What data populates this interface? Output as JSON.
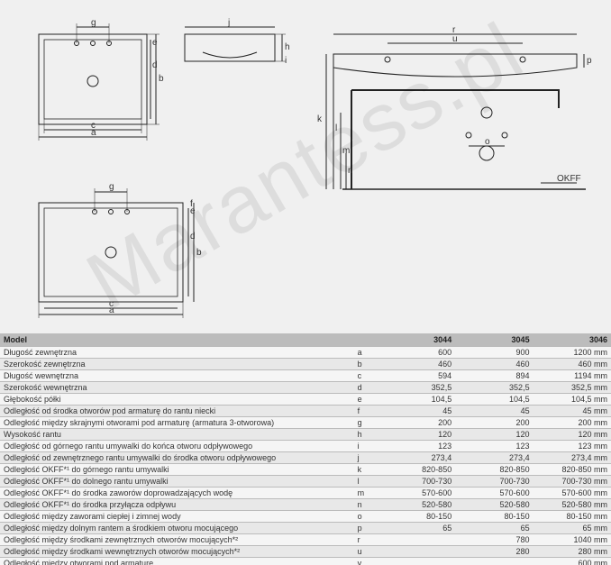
{
  "watermark": "Marantess.pl",
  "diagrams": {
    "bg": "#f0f0f0",
    "stroke": "#222222",
    "stroke_width": 1,
    "dim_line_color": "#222222",
    "label_okff": "OKFF",
    "letters": [
      "a",
      "b",
      "c",
      "d",
      "e",
      "f",
      "g",
      "h",
      "i",
      "j",
      "k",
      "l",
      "m",
      "n",
      "o",
      "p",
      "r",
      "u"
    ]
  },
  "table": {
    "header": {
      "model": "Model",
      "col1": "3044",
      "col2": "3045",
      "col3": "3046"
    },
    "rows": [
      {
        "desc": "Długość zewnętrzna",
        "key": "a",
        "v1": "600",
        "v2": "900",
        "v3": "1200 mm"
      },
      {
        "desc": "Szerokość zewnętrzna",
        "key": "b",
        "v1": "460",
        "v2": "460",
        "v3": "460 mm"
      },
      {
        "desc": "Długość wewnętrzna",
        "key": "c",
        "v1": "594",
        "v2": "894",
        "v3": "1194 mm"
      },
      {
        "desc": "Szerokość wewnętrzna",
        "key": "d",
        "v1": "352,5",
        "v2": "352,5",
        "v3": "352,5 mm"
      },
      {
        "desc": "Głębokość półki",
        "key": "e",
        "v1": "104,5",
        "v2": "104,5",
        "v3": "104,5 mm"
      },
      {
        "desc": "Odległość od środka otworów pod armaturę do rantu niecki",
        "key": "f",
        "v1": "45",
        "v2": "45",
        "v3": "45 mm"
      },
      {
        "desc": "Odległość między skrajnymi otworami pod armaturę (armatura 3-otworowa)",
        "key": "g",
        "v1": "200",
        "v2": "200",
        "v3": "200 mm"
      },
      {
        "desc": "Wysokość rantu",
        "key": "h",
        "v1": "120",
        "v2": "120",
        "v3": "120 mm"
      },
      {
        "desc": "Odległość od górnego rantu umywalki do końca otworu odpływowego",
        "key": "i",
        "v1": "123",
        "v2": "123",
        "v3": "123 mm"
      },
      {
        "desc": "Odległość od zewnętrznego rantu umywalki do środka otworu odpływowego",
        "key": "j",
        "v1": "273,4",
        "v2": "273,4",
        "v3": "273,4 mm"
      },
      {
        "desc": "Odległość OKFF*¹ do górnego rantu umywalki",
        "key": "k",
        "v1": "820-850",
        "v2": "820-850",
        "v3": "820-850 mm"
      },
      {
        "desc": "Odległość OKFF*¹ do dolnego rantu umywalki",
        "key": "l",
        "v1": "700-730",
        "v2": "700-730",
        "v3": "700-730 mm"
      },
      {
        "desc": "Odległość OKFF*¹ do środka zaworów doprowadzających wodę",
        "key": "m",
        "v1": "570-600",
        "v2": "570-600",
        "v3": "570-600 mm"
      },
      {
        "desc": "Odległość OKFF*¹ do środka przyłącza odpływu",
        "key": "n",
        "v1": "520-580",
        "v2": "520-580",
        "v3": "520-580 mm"
      },
      {
        "desc": "Odległość między zaworami ciepłej i zimnej wody",
        "key": "o",
        "v1": "80-150",
        "v2": "80-150",
        "v3": "80-150 mm"
      },
      {
        "desc": "Odległość między dolnym rantem a środkiem otworu mocującego",
        "key": "p",
        "v1": "65",
        "v2": "65",
        "v3": "65 mm"
      },
      {
        "desc": "Odległość między środkami zewnętrznych otworów mocujących*²",
        "key": "r",
        "v1": "",
        "v2": "780",
        "v3": "1040 mm"
      },
      {
        "desc": "Odległość między środkami wewnętrznych otworów mocujących*²",
        "key": "u",
        "v1": "",
        "v2": "280",
        "v3": "280 mm"
      },
      {
        "desc": "Odległość między otworami pod armaturę",
        "key": "v",
        "v1": "",
        "v2": "",
        "v3": "600 mm"
      }
    ]
  }
}
